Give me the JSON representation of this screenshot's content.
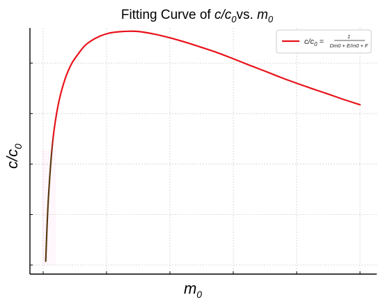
{
  "chart_data": {
    "type": "line",
    "title": {
      "prefix": "Fitting Curve of ",
      "var1": "c/c",
      "sub1": "0",
      "mid": "vs. ",
      "var2": "m",
      "sub2": "0"
    },
    "xlabel": {
      "var": "m",
      "sub": "0"
    },
    "ylabel": {
      "var": "c/c",
      "sub": "0"
    },
    "xlim": [
      0,
      100
    ],
    "ylim": [
      0,
      100
    ],
    "xticks": [
      0,
      20,
      40,
      60,
      80,
      100
    ],
    "yticks": [
      0,
      20,
      40,
      60,
      80,
      100
    ],
    "tick_labels_shown": false,
    "grid": true,
    "legend": {
      "position": "top-right",
      "lhs": "c/c",
      "lhs_sub": "0",
      "equals": " = ",
      "numerator": "1",
      "denominator": "Dm0 + E/m0 + F"
    },
    "series": [
      {
        "name": "c/c0 = 1/(Dm0 + E/m0 + F)",
        "color": "#e8121a",
        "start_color": "#5a3a10",
        "x": [
          0.8,
          1.5,
          2.5,
          3.5,
          5,
          7,
          9,
          11,
          13,
          15,
          18,
          21,
          24,
          27,
          30,
          35,
          40,
          45,
          50,
          55,
          60,
          65,
          70,
          75,
          80,
          85,
          90,
          95,
          100
        ],
        "values": [
          1.5,
          23,
          42,
          54,
          65,
          74,
          79.8,
          83.5,
          86.7,
          88.7,
          90.7,
          91.9,
          92.4,
          92.6,
          92.5,
          91.5,
          90,
          88.2,
          86.2,
          84.1,
          81.7,
          79.2,
          76.8,
          74.3,
          72,
          69.8,
          67.7,
          65.5,
          63.5
        ]
      }
    ]
  }
}
